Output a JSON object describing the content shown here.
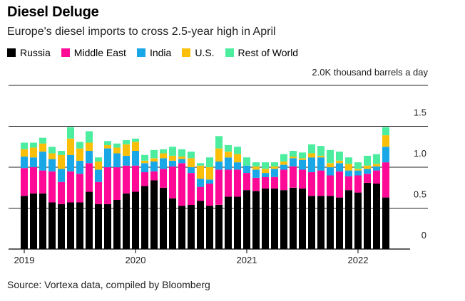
{
  "title": "Diesel Deluge",
  "subtitle": "Europe's diesel imports to cross 2.5-year high in April",
  "source": "Source: Vortexa data, compiled by Bloomberg",
  "colors": {
    "Russia": "#000000",
    "Middle East": "#ff0a96",
    "India": "#1aa7e8",
    "U.S.": "#fbbf0a",
    "Rest of World": "#4deda0"
  },
  "chart_data": {
    "type": "bar",
    "stacked": true,
    "title": "Diesel Deluge",
    "ylabel": "thousand barrels a day",
    "y_unit_label": "2.0K thousand barrels a day",
    "ylim": [
      0,
      2.0
    ],
    "y_ticks": [
      {
        "value": 0,
        "label": "0"
      },
      {
        "value": 0.5,
        "label": "0.5"
      },
      {
        "value": 1.0,
        "label": "1.0"
      },
      {
        "value": 1.5,
        "label": "1.5"
      }
    ],
    "x_ticks": [
      {
        "index": 0,
        "label": "2019"
      },
      {
        "index": 12,
        "label": "2020"
      },
      {
        "index": 24,
        "label": "2021"
      },
      {
        "index": 36,
        "label": "2022"
      }
    ],
    "categories": [
      "2019-01",
      "2019-02",
      "2019-03",
      "2019-04",
      "2019-05",
      "2019-06",
      "2019-07",
      "2019-08",
      "2019-09",
      "2019-10",
      "2019-11",
      "2019-12",
      "2020-01",
      "2020-02",
      "2020-03",
      "2020-04",
      "2020-05",
      "2020-06",
      "2020-07",
      "2020-08",
      "2020-09",
      "2020-10",
      "2020-11",
      "2020-12",
      "2021-01",
      "2021-02",
      "2021-03",
      "2021-04",
      "2021-05",
      "2021-06",
      "2021-07",
      "2021-08",
      "2021-09",
      "2021-10",
      "2021-11",
      "2021-12",
      "2022-01",
      "2022-02",
      "2022-03",
      "2022-04"
    ],
    "series": [
      {
        "name": "Russia",
        "values": [
          0.65,
          0.68,
          0.68,
          0.57,
          0.55,
          0.57,
          0.57,
          0.7,
          0.55,
          0.55,
          0.6,
          0.68,
          0.7,
          0.77,
          0.84,
          0.75,
          0.62,
          0.53,
          0.54,
          0.59,
          0.53,
          0.54,
          0.64,
          0.64,
          0.72,
          0.71,
          0.74,
          0.74,
          0.72,
          0.75,
          0.74,
          0.65,
          0.65,
          0.65,
          0.63,
          0.72,
          0.69,
          0.81,
          0.8,
          0.63
        ]
      },
      {
        "name": "Middle East",
        "values": [
          0.34,
          0.32,
          0.28,
          0.38,
          0.27,
          0.38,
          0.35,
          0.35,
          0.27,
          0.45,
          0.4,
          0.34,
          0.32,
          0.17,
          0.11,
          0.23,
          0.39,
          0.52,
          0.39,
          0.17,
          0.27,
          0.43,
          0.33,
          0.33,
          0.21,
          0.16,
          0.14,
          0.14,
          0.25,
          0.26,
          0.23,
          0.29,
          0.31,
          0.25,
          0.32,
          0.17,
          0.21,
          0.11,
          0.16,
          0.43
        ]
      },
      {
        "name": "India",
        "values": [
          0.14,
          0.12,
          0.23,
          0.15,
          0.16,
          0.2,
          0.16,
          0.15,
          0.15,
          0.23,
          0.17,
          0.12,
          0.18,
          0.11,
          0.12,
          0.13,
          0.07,
          0.05,
          0.07,
          0.1,
          0.05,
          0.1,
          0.15,
          0.09,
          0.09,
          0.1,
          0.05,
          0.1,
          0.06,
          0.1,
          0.12,
          0.18,
          0.16,
          0.1,
          0.1,
          0.07,
          0.06,
          0.06,
          0.05,
          0.19
        ]
      },
      {
        "name": "U.S.",
        "values": [
          0.09,
          0.12,
          0.1,
          0.07,
          0.17,
          0.2,
          0.15,
          0.1,
          0.1,
          0.04,
          0.07,
          0.14,
          0.11,
          0.03,
          0.04,
          0.06,
          0.06,
          0.03,
          0.11,
          0.16,
          0.15,
          0.16,
          0.07,
          0.1,
          0.0,
          0.04,
          0.05,
          0.03,
          0.04,
          0.02,
          0.02,
          0.05,
          0.02,
          0.05,
          0.03,
          0.08,
          0.02,
          0.04,
          0.03,
          0.14
        ]
      },
      {
        "name": "Rest of World",
        "values": [
          0.08,
          0.06,
          0.07,
          0.08,
          0.05,
          0.14,
          0.08,
          0.14,
          0.05,
          0.05,
          0.05,
          0.05,
          0.04,
          0.07,
          0.1,
          0.05,
          0.11,
          0.09,
          0.08,
          0.03,
          0.12,
          0.15,
          0.08,
          0.09,
          0.1,
          0.05,
          0.08,
          0.05,
          0.09,
          0.07,
          0.07,
          0.11,
          0.12,
          0.16,
          0.11,
          0.08,
          0.08,
          0.12,
          0.12,
          0.1
        ]
      }
    ]
  }
}
